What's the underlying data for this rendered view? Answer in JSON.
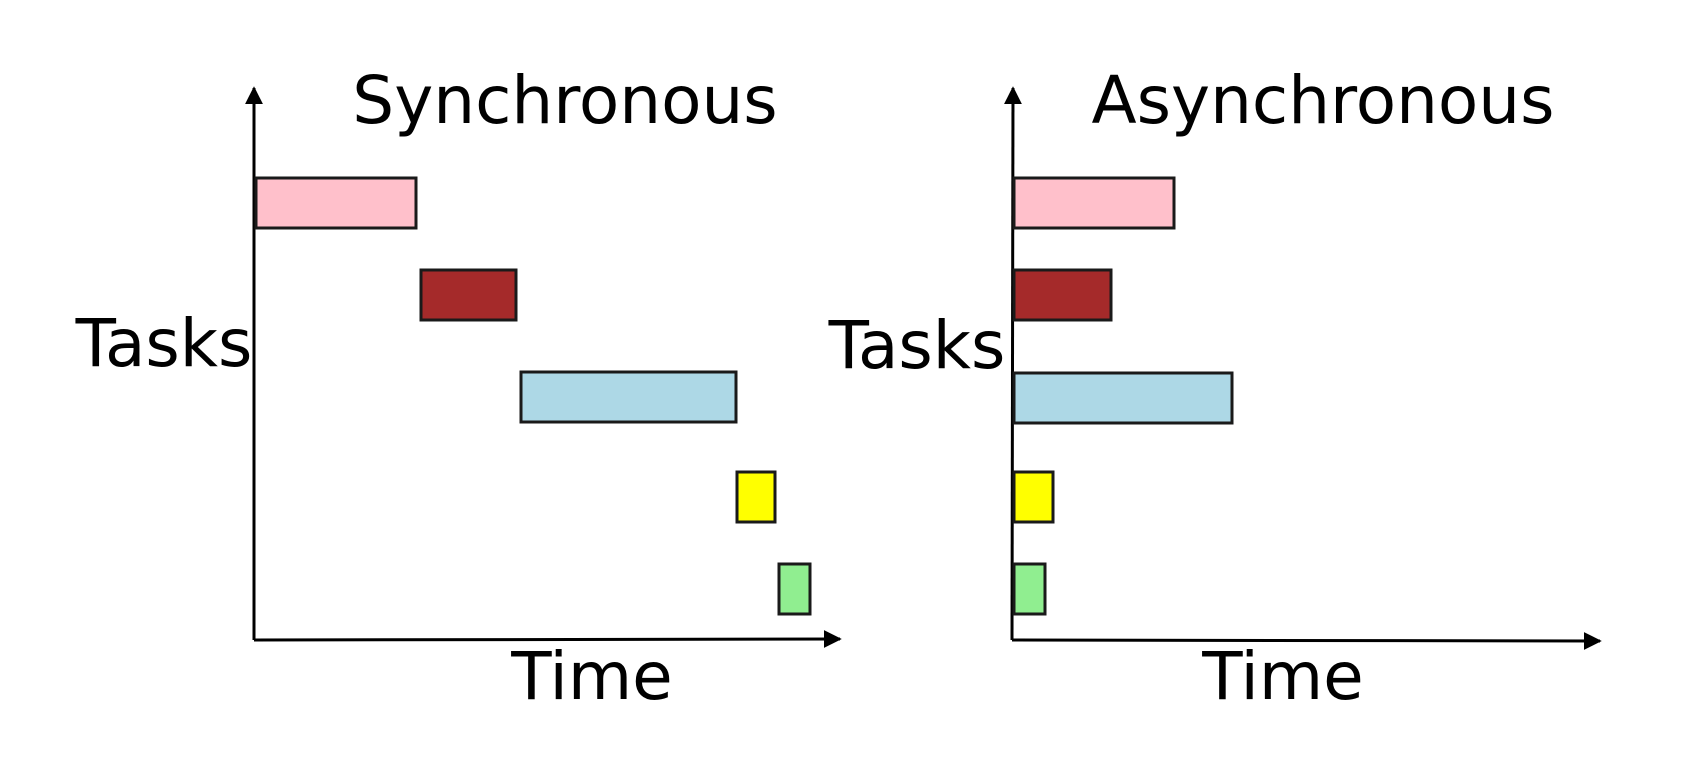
{
  "panels": [
    {
      "title": "Synchronous",
      "y_axis_label": "Tasks",
      "x_axis_label": "Time",
      "tasks": [
        {
          "color": "#FFC0CB",
          "start": 0,
          "duration": 16
        },
        {
          "color": "#A52A2A",
          "start": 16.5,
          "duration": 9.5
        },
        {
          "color": "#ADD8E6",
          "start": 26.5,
          "duration": 21.5
        },
        {
          "color": "#FFFF00",
          "start": 48.1,
          "duration": 3.8
        },
        {
          "color": "#90EE90",
          "start": 52.3,
          "duration": 3.1
        }
      ]
    },
    {
      "title": "Asynchronous",
      "y_axis_label": "Tasks",
      "x_axis_label": "Time",
      "tasks": [
        {
          "color": "#FFC0CB",
          "start": 0,
          "duration": 16
        },
        {
          "color": "#A52A2A",
          "start": 0,
          "duration": 9.7
        },
        {
          "color": "#ADD8E6",
          "start": 0,
          "duration": 21.8
        },
        {
          "color": "#FFFF00",
          "start": 0,
          "duration": 3.9
        },
        {
          "color": "#90EE90",
          "start": 0,
          "duration": 3.1
        }
      ]
    }
  ]
}
